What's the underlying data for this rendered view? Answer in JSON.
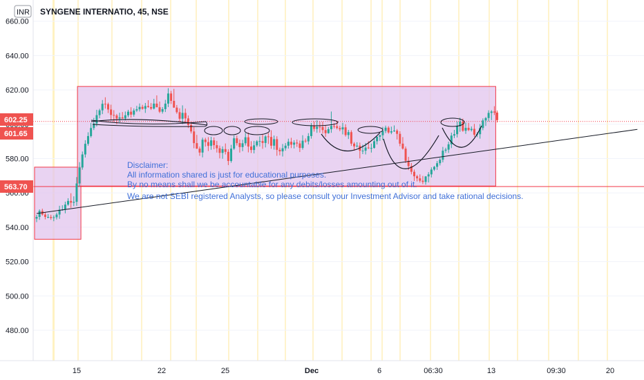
{
  "header": {
    "currency": "INR",
    "symbol_line": "SYNGENE INTERNATIO, 45, NSE"
  },
  "chart_data": {
    "type": "candlestick",
    "ylim": [
      470,
      662
    ],
    "y_ticks": [
      480,
      500,
      520,
      540,
      560,
      580,
      600,
      620,
      640,
      660
    ],
    "y_tick_labels": [
      "480.00",
      "500.00",
      "520.00",
      "540.00",
      "560.00",
      "580.00",
      "600.00",
      "620.00",
      "640.00",
      "660.00"
    ],
    "x_tick_labels": [
      "15",
      "22",
      "25",
      "Dec",
      "6",
      "06:30",
      "13",
      "09:30",
      "20"
    ],
    "price_badges": [
      {
        "label": "602.25",
        "value": 602.25,
        "color": "#ef5350"
      },
      {
        "label": "601.65",
        "value": 601.65,
        "color": "#ef5350"
      },
      {
        "label": "563.70",
        "value": 563.7,
        "color": "#ef5350"
      }
    ],
    "horizontal_lines": [
      {
        "value": 563.7,
        "color": "#f23645",
        "style": "solid"
      },
      {
        "value": 601.65,
        "color": "#f23645",
        "style": "dotted"
      }
    ],
    "rectangles": [
      {
        "start_bar": 0,
        "end_bar": 15,
        "top": 575,
        "bottom": 533,
        "fill": "#e1c4ee"
      },
      {
        "start_bar": 15,
        "end_bar": 160,
        "top": 622,
        "bottom": 564,
        "fill": "#e1c4ee"
      }
    ],
    "trend_line": {
      "start_bar": 0,
      "start_value": 548,
      "end_bar": 210,
      "end_value": 597,
      "color": "#131722"
    },
    "candle_colors": {
      "up": "#26a69a",
      "down": "#ef5350"
    },
    "candles": [
      [
        0,
        545.0,
        547.2,
        543.0,
        546.0
      ],
      [
        1,
        546.0,
        550.4,
        544.3,
        549.5
      ],
      [
        2,
        549.5,
        550.8,
        546.7,
        547.4
      ],
      [
        3,
        547.4,
        548.8,
        544.6,
        546.0
      ],
      [
        4,
        546.0,
        547.7,
        545.2,
        546.0
      ],
      [
        5,
        546.0,
        547.3,
        544.3,
        545.4
      ],
      [
        6,
        545.4,
        546.9,
        543.5,
        545.8
      ],
      [
        7,
        545.8,
        548.5,
        544.5,
        547.4
      ],
      [
        8,
        547.4,
        552.5,
        544.9,
        550.2
      ],
      [
        9,
        550.2,
        552.8,
        549.6,
        550.3
      ],
      [
        10,
        550.3,
        554.9,
        548.1,
        553.2
      ],
      [
        11,
        553.2,
        556.9,
        552.5,
        555.3
      ],
      [
        12,
        555.3,
        559.8,
        551.3,
        554.3
      ],
      [
        13,
        554.3,
        558.0,
        552.3,
        554.8
      ],
      [
        14,
        554.8,
        569.2,
        552.5,
        565.5
      ],
      [
        15,
        565.5,
        577.9,
        563.6,
        574.8
      ],
      [
        16,
        574.8,
        584.1,
        573.5,
        582.4
      ],
      [
        17,
        582.4,
        590.7,
        580.6,
        588.6
      ],
      [
        18,
        588.6,
        595.3,
        587.5,
        593.1
      ],
      [
        19,
        593.1,
        600.7,
        592.2,
        597.8
      ],
      [
        20,
        597.8,
        603.7,
        596.6,
        600.4
      ],
      [
        21,
        600.4,
        608.4,
        598.7,
        605.3
      ],
      [
        22,
        605.3,
        609.0,
        603.5,
        608.1
      ],
      [
        23,
        608.1,
        614.1,
        605.9,
        611.9
      ],
      [
        24,
        611.9,
        615.7,
        609.1,
        611.7
      ],
      [
        25,
        611.7,
        612.6,
        606.5,
        608.6
      ],
      [
        26,
        608.6,
        611.4,
        602.6,
        605.4
      ],
      [
        27,
        605.4,
        608.2,
        601.4,
        605.1
      ],
      [
        28,
        605.1,
        606.0,
        600.0,
        603.3
      ],
      [
        29,
        603.3,
        606.7,
        601.1,
        604.0
      ],
      [
        30,
        604.0,
        607.1,
        603.2,
        603.4
      ],
      [
        31,
        603.4,
        607.4,
        602.2,
        605.2
      ],
      [
        32,
        605.2,
        608.4,
        604.0,
        607.3
      ],
      [
        33,
        607.3,
        609.9,
        603.8,
        605.6
      ],
      [
        34,
        605.6,
        609.2,
        604.4,
        608.0
      ],
      [
        35,
        608.0,
        610.7,
        607.1,
        608.7
      ],
      [
        36,
        608.7,
        612.1,
        607.4,
        610.1
      ],
      [
        37,
        610.1,
        611.3,
        608.5,
        609.0
      ],
      [
        38,
        609.0,
        612.4,
        606.6,
        610.6
      ],
      [
        39,
        610.6,
        614.0,
        609.6,
        610.0
      ],
      [
        40,
        610.0,
        612.3,
        608.3,
        609.1
      ],
      [
        41,
        609.1,
        614.8,
        608.6,
        612.0
      ],
      [
        42,
        612.0,
        616.8,
        609.9,
        609.9
      ],
      [
        43,
        609.9,
        613.2,
        606.5,
        607.3
      ],
      [
        44,
        607.3,
        610.0,
        606.2,
        608.8
      ],
      [
        45,
        608.8,
        614.2,
        607.1,
        612.0
      ],
      [
        46,
        612.0,
        621.0,
        610.0,
        617.9
      ],
      [
        47,
        617.9,
        619.4,
        611.8,
        613.6
      ],
      [
        48,
        613.6,
        620.6,
        609.5,
        609.7
      ],
      [
        49,
        609.7,
        611.2,
        606.1,
        607.0
      ],
      [
        50,
        607.0,
        609.3,
        601.4,
        603.2
      ],
      [
        51,
        603.2,
        611.0,
        600.1,
        606.6
      ],
      [
        52,
        606.6,
        609.1,
        601.1,
        603.4
      ],
      [
        53,
        603.4,
        605.1,
        597.8,
        599.6
      ],
      [
        54,
        599.6,
        601.7,
        594.6,
        595.8
      ],
      [
        55,
        595.8,
        598.3,
        586.0,
        589.0
      ],
      [
        56,
        589.0,
        593.8,
        585.6,
        585.8
      ],
      [
        57,
        585.8,
        587.0,
        581.6,
        583.5
      ],
      [
        58,
        583.5,
        592.2,
        580.7,
        591.0
      ],
      [
        59,
        591.0,
        592.1,
        587.0,
        589.6
      ],
      [
        60,
        589.6,
        592.5,
        584.4,
        587.4
      ],
      [
        61,
        587.4,
        592.7,
        585.1,
        590.6
      ],
      [
        62,
        590.6,
        592.3,
        585.4,
        587.8
      ],
      [
        63,
        587.8,
        590.3,
        583.5,
        586.0
      ],
      [
        64,
        586.0,
        587.6,
        580.1,
        583.3
      ],
      [
        65,
        583.3,
        587.1,
        579.9,
        585.5
      ],
      [
        66,
        585.5,
        588.8,
        582.4,
        583.9
      ],
      [
        67,
        583.9,
        585.4,
        576.2,
        578.6
      ],
      [
        68,
        578.6,
        588.0,
        577.6,
        585.8
      ],
      [
        69,
        585.8,
        593.4,
        585.0,
        591.8
      ],
      [
        70,
        591.8,
        593.4,
        587.6,
        589.0
      ],
      [
        71,
        589.0,
        591.1,
        583.5,
        586.7
      ],
      [
        72,
        586.7,
        590.9,
        584.3,
        588.9
      ],
      [
        73,
        588.9,
        594.9,
        587.6,
        592.4
      ],
      [
        74,
        592.4,
        595.2,
        583.6,
        587.0
      ],
      [
        75,
        587.0,
        590.1,
        583.2,
        585.0
      ],
      [
        76,
        585.0,
        590.3,
        583.0,
        587.7
      ],
      [
        77,
        587.7,
        590.7,
        586.8,
        590.0
      ],
      [
        78,
        590.0,
        592.9,
        587.0,
        590.2
      ],
      [
        79,
        590.2,
        594.0,
        585.7,
        589.1
      ],
      [
        80,
        589.1,
        593.6,
        586.5,
        592.9
      ],
      [
        81,
        592.9,
        594.9,
        588.5,
        592.6
      ],
      [
        82,
        592.6,
        596.5,
        585.7,
        587.5
      ],
      [
        83,
        587.5,
        593.4,
        585.2,
        591.3
      ],
      [
        84,
        591.3,
        593.0,
        581.6,
        585.1
      ],
      [
        85,
        585.1,
        586.4,
        581.9,
        584.2
      ],
      [
        86,
        584.2,
        588.5,
        581.2,
        586.0
      ],
      [
        87,
        586.0,
        589.0,
        584.6,
        587.5
      ],
      [
        88,
        587.5,
        591.6,
        585.8,
        589.8
      ],
      [
        89,
        589.8,
        592.1,
        586.1,
        588.1
      ],
      [
        90,
        588.1,
        590.7,
        585.9,
        589.3
      ],
      [
        91,
        589.3,
        591.1,
        586.8,
        588.8
      ],
      [
        92,
        588.8,
        590.5,
        583.8,
        586.2
      ],
      [
        93,
        586.2,
        593.6,
        585.2,
        590.4
      ],
      [
        94,
        590.4,
        591.7,
        589.2,
        590.0
      ],
      [
        95,
        590.0,
        594.8,
        588.2,
        593.1
      ],
      [
        96,
        593.1,
        600.7,
        591.6,
        598.9
      ],
      [
        97,
        598.9,
        601.6,
        595.7,
        597.3
      ],
      [
        98,
        597.3,
        602.3,
        595.0,
        598.5
      ],
      [
        99,
        598.5,
        601.5,
        595.1,
        598.4
      ],
      [
        100,
        598.4,
        601.5,
        594.5,
        596.6
      ],
      [
        101,
        596.6,
        599.2,
        592.6,
        594.8
      ],
      [
        102,
        594.8,
        598.3,
        594.5,
        597.1
      ],
      [
        103,
        597.1,
        607.4,
        595.0,
        599.0
      ],
      [
        104,
        599.0,
        600.5,
        597.5,
        598.8
      ],
      [
        105,
        598.8,
        601.9,
        597.0,
        597.8
      ],
      [
        106,
        597.8,
        599.1,
        595.9,
        597.0
      ],
      [
        107,
        597.0,
        600.8,
        594.1,
        598.2
      ],
      [
        108,
        598.2,
        600.0,
        592.8,
        593.7
      ],
      [
        109,
        593.7,
        596.7,
        591.4,
        595.4
      ],
      [
        110,
        595.4,
        596.5,
        587.4,
        588.7
      ],
      [
        111,
        588.7,
        589.6,
        584.6,
        587.1
      ],
      [
        112,
        587.1,
        589.5,
        586.4,
        587.5
      ],
      [
        113,
        587.5,
        589.3,
        580.1,
        584.6
      ],
      [
        114,
        584.6,
        588.1,
        582.6,
        584.6
      ],
      [
        115,
        584.6,
        589.1,
        582.4,
        586.4
      ],
      [
        116,
        586.4,
        590.2,
        585.6,
        586.1
      ],
      [
        117,
        586.1,
        588.7,
        583.5,
        586.2
      ],
      [
        118,
        586.2,
        591.5,
        585.8,
        590.1
      ],
      [
        119,
        590.1,
        592.9,
        588.2,
        592.7
      ],
      [
        120,
        592.7,
        594.0,
        590.3,
        593.6
      ],
      [
        121,
        593.6,
        598.5,
        590.8,
        596.1
      ],
      [
        122,
        596.1,
        599.2,
        594.8,
        598.0
      ],
      [
        123,
        598.0,
        598.9,
        594.5,
        595.2
      ],
      [
        124,
        595.2,
        598.6,
        594.2,
        595.9
      ],
      [
        125,
        595.9,
        599.3,
        595.5,
        596.3
      ],
      [
        126,
        596.3,
        597.2,
        591.1,
        594.4
      ],
      [
        127,
        594.4,
        595.9,
        587.2,
        588.7
      ],
      [
        128,
        588.7,
        592.5,
        585.2,
        585.8
      ],
      [
        129,
        585.8,
        587.0,
        577.4,
        578.7
      ],
      [
        130,
        578.7,
        581.0,
        573.3,
        575.6
      ],
      [
        131,
        575.6,
        577.4,
        570.8,
        572.3
      ],
      [
        132,
        572.3,
        573.6,
        567.0,
        569.7
      ],
      [
        133,
        569.7,
        570.5,
        566.7,
        568.5
      ],
      [
        134,
        568.5,
        570.8,
        566.0,
        567.1
      ],
      [
        135,
        567.1,
        569.9,
        565.1,
        566.4
      ],
      [
        136,
        566.4,
        569.8,
        564.8,
        569.6
      ],
      [
        137,
        569.6,
        572.1,
        566.1,
        570.8
      ],
      [
        138,
        570.8,
        574.9,
        569.0,
        573.6
      ],
      [
        139,
        573.6,
        575.7,
        572.8,
        575.2
      ],
      [
        140,
        575.2,
        578.6,
        573.4,
        577.3
      ],
      [
        141,
        577.3,
        580.4,
        576.0,
        579.3
      ],
      [
        142,
        579.3,
        586.8,
        577.8,
        584.6
      ],
      [
        143,
        584.6,
        586.3,
        583.3,
        585.2
      ],
      [
        144,
        585.2,
        589.8,
        583.3,
        588.3
      ],
      [
        145,
        588.3,
        595.1,
        586.1,
        593.4
      ],
      [
        146,
        593.4,
        596.7,
        591.9,
        594.2
      ],
      [
        147,
        594.2,
        601.6,
        592.3,
        598.8
      ],
      [
        148,
        598.8,
        603.8,
        595.6,
        601.5
      ],
      [
        149,
        601.5,
        603.3,
        595.6,
        596.2
      ],
      [
        150,
        596.2,
        601.0,
        594.4,
        597.9
      ],
      [
        151,
        597.9,
        600.8,
        596.0,
        596.6
      ],
      [
        152,
        596.6,
        598.7,
        595.8,
        597.3
      ],
      [
        153,
        597.3,
        600.2,
        592.7,
        593.9
      ],
      [
        154,
        593.9,
        595.3,
        592.5,
        594.2
      ],
      [
        155,
        594.2,
        600.1,
        591.6,
        597.8
      ],
      [
        156,
        597.8,
        603.4,
        596.5,
        602.2
      ],
      [
        157,
        602.2,
        604.2,
        599.0,
        603.6
      ],
      [
        158,
        603.6,
        608.1,
        601.6,
        606.6
      ],
      [
        159,
        606.6,
        608.2,
        602.4,
        607.4
      ],
      [
        160,
        607.4,
        610.5,
        605.4,
        606.8
      ],
      [
        161,
        606.8,
        608.0,
        601.0,
        602.4
      ]
    ]
  },
  "disclaimer": {
    "title": "Disclaimer:",
    "line1": "All information shared is just for educational purposes.",
    "line2": "By no means shall we be accountable for any debits/losses amounting out of it.",
    "line3": "We are not SEBI registered Analysts, so please consult your Investment Advisor and take rational decisions."
  }
}
